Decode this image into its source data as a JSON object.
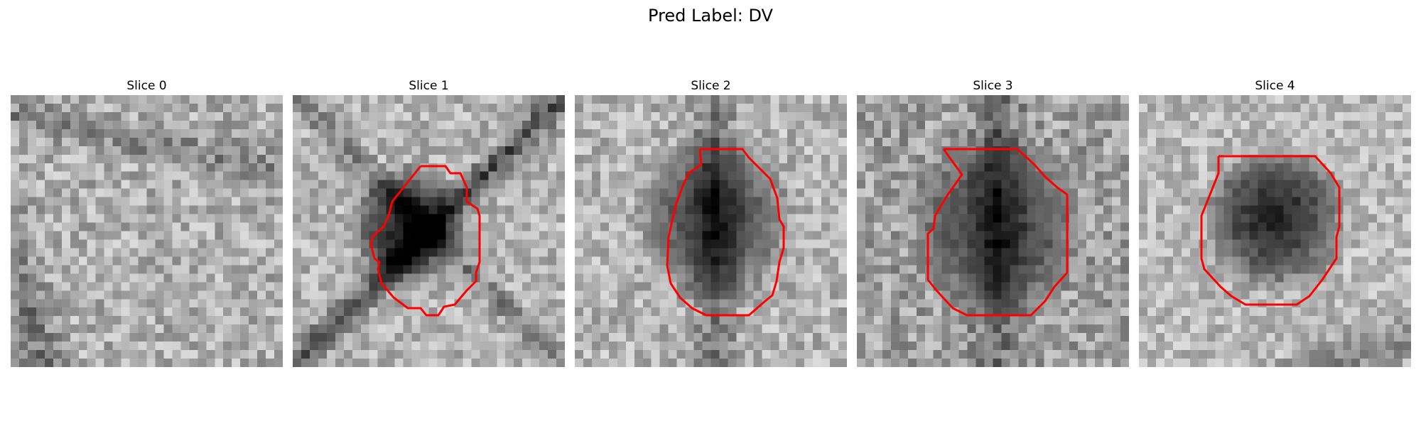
{
  "figure": {
    "title": "Pred Label: DV"
  },
  "slices": [
    {
      "title": "Slice 0",
      "has_contour": false
    },
    {
      "title": "Slice 1",
      "has_contour": true
    },
    {
      "title": "Slice 2",
      "has_contour": true
    },
    {
      "title": "Slice 3",
      "has_contour": true
    },
    {
      "title": "Slice 4",
      "has_contour": true
    }
  ],
  "colors": {
    "contour": "#ff0000",
    "background": "#ffffff"
  }
}
